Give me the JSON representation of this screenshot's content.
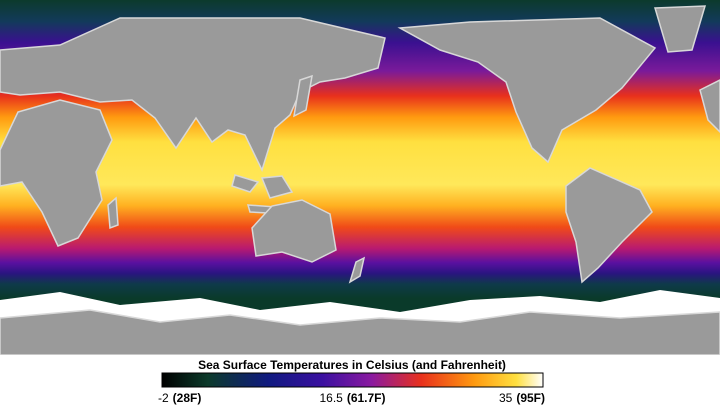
{
  "legend": {
    "title": "Sea Surface Temperatures in Celsius (and Fahrenheit)",
    "ticks": [
      {
        "value": -2,
        "fahrenheit": "(28F)"
      },
      {
        "value": 16.5,
        "fahrenheit": "(61.7F)"
      },
      {
        "value": 35,
        "fahrenheit": "(95F)"
      }
    ]
  }
}
